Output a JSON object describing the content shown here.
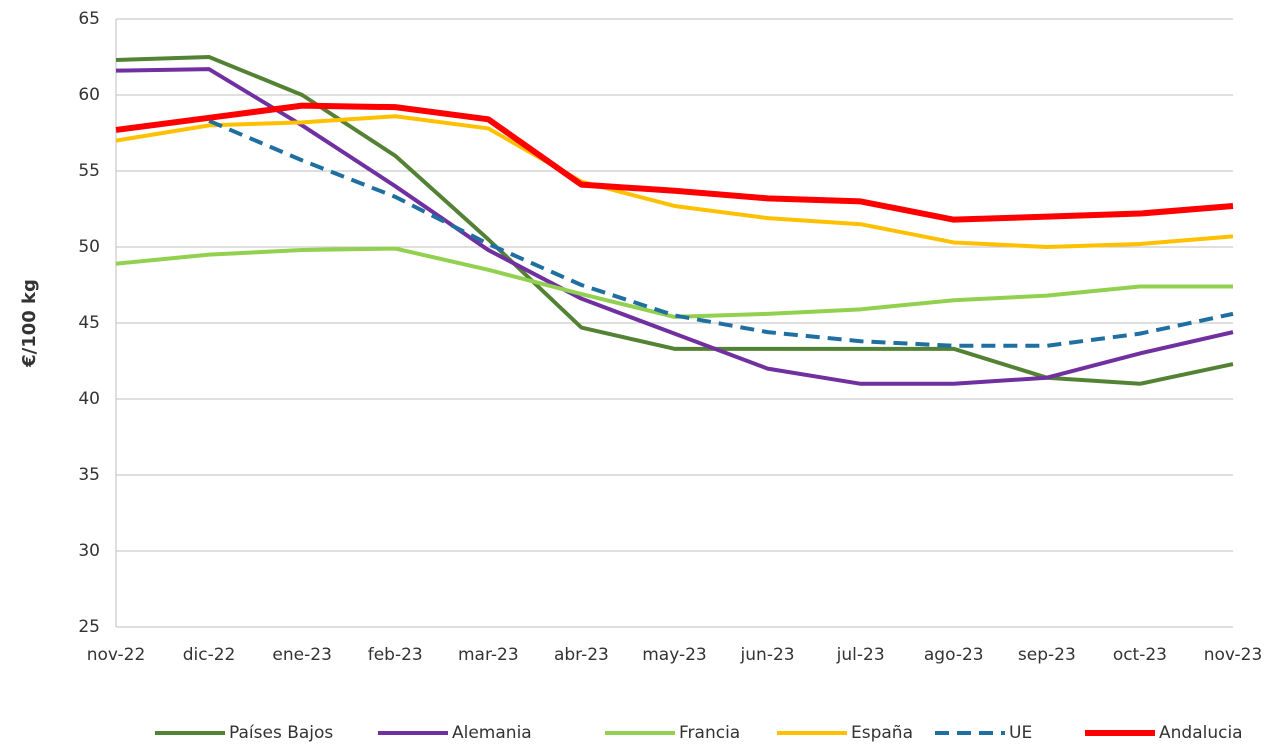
{
  "chart_data": {
    "type": "line",
    "y_label": "€/100 kg",
    "categories": [
      "nov-22",
      "dic-22",
      "ene-23",
      "feb-23",
      "mar-23",
      "abr-23",
      "may-23",
      "jun-23",
      "jul-23",
      "ago-23",
      "sep-23",
      "oct-23",
      "nov-23"
    ],
    "ylim": [
      25,
      65
    ],
    "yticks": [
      25,
      30,
      35,
      40,
      45,
      50,
      55,
      60,
      65
    ],
    "grid": true,
    "series": [
      {
        "name": "Países Bajos",
        "color": "#548235",
        "values": [
          62.3,
          62.5,
          60.0,
          56.0,
          50.5,
          44.7,
          43.3,
          43.3,
          43.3,
          43.3,
          41.4,
          41.0,
          42.3
        ]
      },
      {
        "name": "Alemania",
        "color": "#7030a0",
        "values": [
          61.6,
          61.7,
          58.0,
          54.0,
          49.8,
          46.6,
          44.3,
          42.0,
          41.0,
          41.0,
          41.4,
          43.0,
          44.4
        ]
      },
      {
        "name": "Francia",
        "color": "#92d050",
        "values": [
          48.9,
          49.5,
          49.8,
          49.9,
          48.5,
          46.9,
          45.4,
          45.6,
          45.9,
          46.5,
          46.8,
          47.4,
          47.4
        ]
      },
      {
        "name": "España",
        "color": "#ffc000",
        "values": [
          57.0,
          58.0,
          58.2,
          58.6,
          57.8,
          54.3,
          52.7,
          51.9,
          51.5,
          50.3,
          50.0,
          50.2,
          50.7
        ]
      },
      {
        "name": "UE",
        "color": "#1f6fa0",
        "dashed": true,
        "values": [
          null,
          58.3,
          55.7,
          53.3,
          50.2,
          47.5,
          45.5,
          44.4,
          43.8,
          43.5,
          43.5,
          44.3,
          45.6
        ]
      },
      {
        "name": "Andalucia",
        "color": "#ff0000",
        "width": 6,
        "values": [
          57.7,
          58.5,
          59.3,
          59.2,
          58.4,
          54.1,
          53.7,
          53.2,
          53.0,
          51.8,
          52.0,
          52.2,
          52.7
        ]
      }
    ]
  }
}
